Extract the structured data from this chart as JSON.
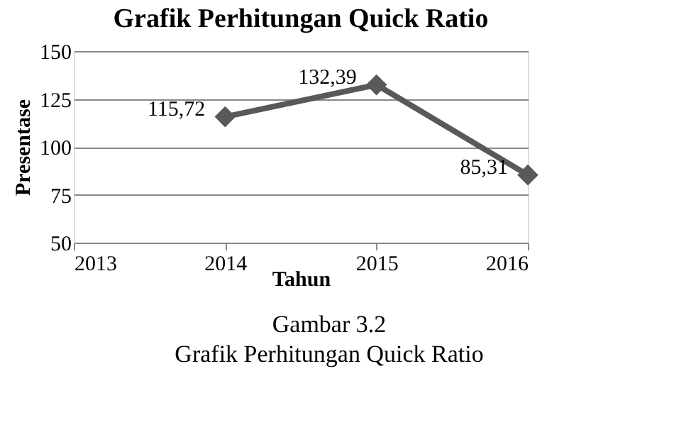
{
  "chart_data": {
    "type": "line",
    "title": "Grafik Perhitungan Quick Ratio",
    "xlabel": "Tahun",
    "ylabel": "Presentase",
    "x": [
      2014,
      2015,
      2016
    ],
    "series": [
      {
        "color": "#595959",
        "values": [
          115.72,
          132.39,
          85.31
        ],
        "value_labels": [
          "115,72",
          "132,39",
          "85,31"
        ]
      }
    ],
    "xlim": [
      2013,
      2016
    ],
    "xticks": [
      2013,
      2014,
      2015,
      2016
    ],
    "ylim": [
      50,
      150
    ],
    "yticks": [
      50,
      75,
      100,
      125,
      150
    ],
    "grid": "y",
    "marker": "diamond",
    "line_style": "solid",
    "annotations": [
      "Gambar 3.2",
      "Grafik Perhitungan Quick Ratio"
    ]
  }
}
